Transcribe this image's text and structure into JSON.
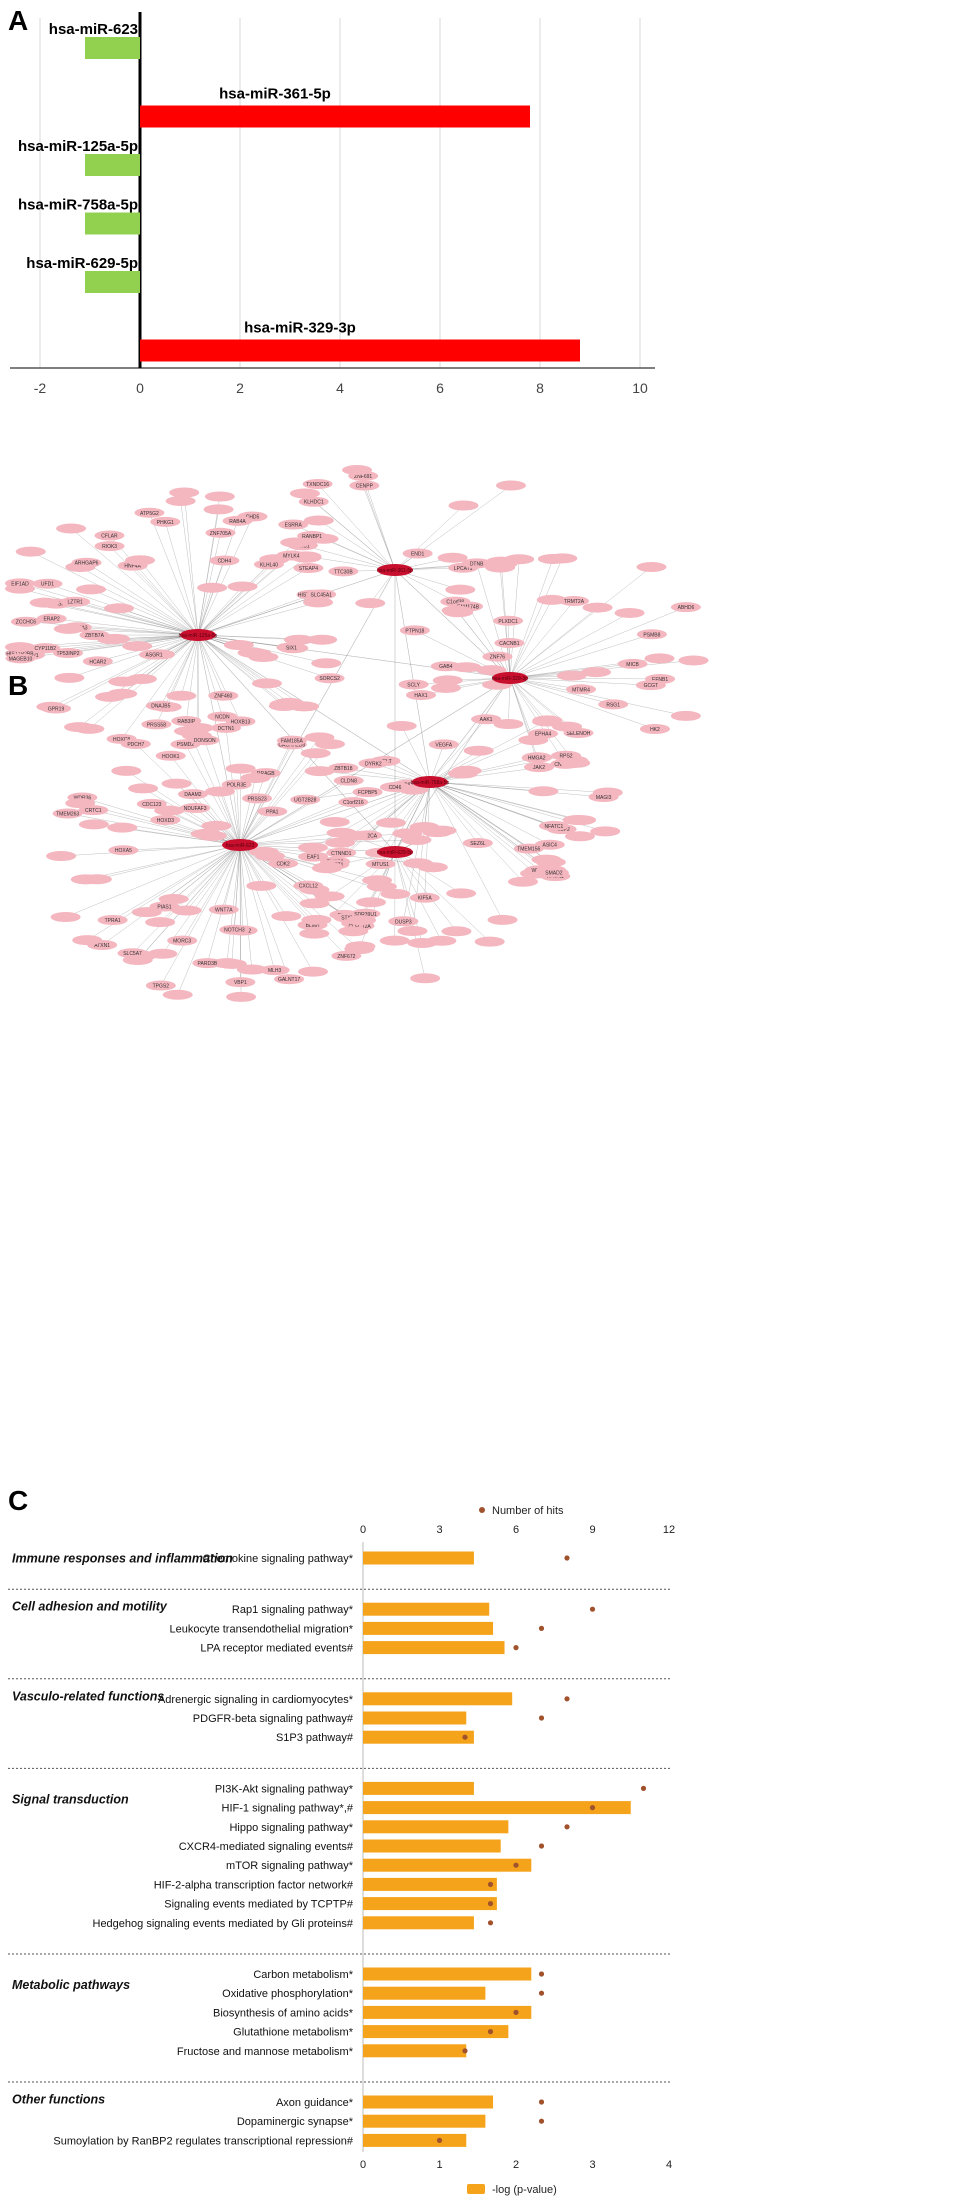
{
  "chart_data": [
    {
      "type": "bar",
      "panel_label": "A",
      "orientation": "horizontal",
      "categories": [
        "hsa-miR-623",
        "hsa-miR-361-5p",
        "hsa-miR-125a-5p",
        "hsa-miR-758a-5p",
        "hsa-miR-629-5p",
        "hsa-miR-329-3p"
      ],
      "values": [
        -1.1,
        7.8,
        -1.1,
        -1.1,
        -1.1,
        8.8
      ],
      "colors": {
        "positive": "#ff0000",
        "negative": "#92d050"
      },
      "xlim": [
        -2.5,
        10.5
      ],
      "xticks": [
        "-2",
        "0",
        "2",
        "4",
        "6",
        "8",
        "10"
      ],
      "grid": true
    },
    {
      "type": "network",
      "panel_label": "B",
      "hub_labels": [
        "hsa-miR-361-5p",
        "hsa-miR-329-3p",
        "hsa-miR-125a-5p",
        "hsa-miR-758a-5p",
        "hsa-miR-623",
        "hsa-miR-629-5p"
      ],
      "node_labels": [
        "ESRRA",
        "PRC1",
        "TXNDC16",
        "CENPP",
        "ZNF691",
        "END1",
        "LPCAT1",
        "RBAK",
        "C1orf38",
        "KLHDC1",
        "TTC30B",
        "CNTLN14",
        "FAM174B",
        "RSG1",
        "EFNB1",
        "PSMB8",
        "HAX1",
        "PFKM",
        "SEMA4B",
        "ABHD6",
        "CACNB1",
        "SELENOH",
        "JAK2",
        "KCNH3",
        "SCLY",
        "HK2",
        "MICB",
        "DTNB",
        "MTMR4",
        "PTPN18",
        "ZNF76",
        "GCGT",
        "TRMT2A",
        "PLXDC1",
        "GAB4",
        "MASP1",
        "ATP5G2",
        "SORCS2",
        "ZNF460",
        "TP53INP2",
        "SDCBP",
        "CFLAR",
        "HIST1H2BB",
        "ZCCHC6",
        "EIF1AD",
        "RAB12",
        "RIOK3",
        "ERAP2",
        "RTKN",
        "HNF4A",
        "NCDN",
        "HIST1H2BH",
        "HOXB13",
        "HOXC8",
        "CDH4",
        "MYLK4",
        "SLC12A3",
        "ASGR1",
        "CYP11B2",
        "HCAR2",
        "BCAN",
        "LZTR1",
        "PHKG1",
        "RANBP1",
        "ZNF705A",
        "IRF2BP2",
        "DNAJB5",
        "STEAP4",
        "PRSS58",
        "SLC45A1",
        "UFD1",
        "CHD5",
        "ARHGAP6",
        "GPR19",
        "MAGEB10",
        "KLHL40",
        "SIX1",
        "RAB4A",
        "ZBTB7A",
        "RAB3IP",
        "ZBTB18",
        "LY6G6F",
        "BID",
        "TMTC2",
        "SEZ6L",
        "EPHA4",
        "PCBP2",
        "HELT",
        "CD46",
        "NFATC1",
        "ASIC4",
        "UGT2B28",
        "TMEM156",
        "WWC3",
        "DUSP3",
        "RPS2",
        "PPP2CA",
        "DYRK2",
        "ARCN1",
        "AAK1",
        "SMAD2",
        "MTUS1",
        "VEGFA",
        "CTNND1",
        "TWIST1",
        "MAGI3",
        "KIF5A",
        "HMGA2",
        "ATXN1",
        "CRTC1",
        "PELO",
        "HOXA5",
        "CDC123",
        "VBP1",
        "PPA1",
        "DCTN1",
        "MACF1",
        "CDK2",
        "HOXD3",
        "STAT6",
        "PSMD2",
        "CLDN8",
        "BLMH",
        "WDR36",
        "CNOT2",
        "RRAGB",
        "TPGS2",
        "MORC3",
        "POLR3E",
        "TMEM263",
        "CACNA2D3",
        "HOOK1",
        "EAF1",
        "PIAS1",
        "NOTCH3",
        "PARD3B",
        "DAAM2",
        "LMX1A",
        "SDR39U1",
        "TPRA1",
        "C1orf216",
        "CXCL12",
        "GALNT17",
        "SLC5A7",
        "FCPBP5",
        "DONSON",
        "CLEC12A",
        "WNT7A",
        "PDCH7",
        "PRSS23",
        "FAM185A",
        "NDUFAF3",
        "ZNF672",
        "MLH3"
      ],
      "edge_colors": {
        "hub": "#c8102e",
        "node": "#f4b6bf",
        "edge": "#8a8a8a"
      }
    },
    {
      "type": "bar",
      "panel_label": "C",
      "orientation": "horizontal",
      "series": [
        {
          "name": "-log (p-value)",
          "values": [
            1.45,
            1.65,
            1.7,
            1.85,
            1.95,
            1.35,
            1.45,
            1.45,
            3.5,
            1.9,
            1.8,
            2.2,
            1.75,
            1.75,
            1.45,
            2.2,
            1.6,
            2.2,
            1.9,
            1.35,
            1.7,
            1.6,
            1.35
          ]
        },
        {
          "name": "Number of hits",
          "values": [
            8,
            9,
            7,
            6,
            8,
            7,
            4,
            11,
            9,
            8,
            7,
            6,
            5,
            5,
            5,
            7,
            7,
            6,
            5,
            4,
            7,
            7,
            3
          ]
        }
      ],
      "categories": [
        "Chemokine signaling pathway*",
        "Rap1 signaling pathway*",
        "Leukocyte transendothelial migration*",
        "LPA receptor mediated events#",
        "Adrenergic signaling in cardiomyocytes*",
        "PDGFR-beta signaling pathway#",
        "S1P3 pathway#",
        "PI3K-Akt signaling pathway*",
        "HIF-1 signaling pathway*,#",
        "Hippo signaling pathway*",
        "CXCR4-mediated signaling events#",
        "mTOR signaling pathway*",
        "HIF-2-alpha transcription factor network#",
        "Signaling events mediated by TCPTP#",
        "Hedgehog signaling events mediated by Gli proteins#",
        "Carbon metabolism*",
        "Oxidative phosphorylation*",
        "Biosynthesis of amino acids*",
        "Glutathione metabolism*",
        "Fructose and mannose metabolism*",
        "Axon guidance*",
        "Dopaminergic synapse*",
        "Sumoylation by RanBP2 regulates transcriptional repression#"
      ],
      "groups": [
        {
          "name": "Immune responses and inflammation",
          "count": 1
        },
        {
          "name": "Cell adhesion and motility",
          "count": 3
        },
        {
          "name": "Vasculo-related functions",
          "count": 3
        },
        {
          "name": "Signal transduction",
          "count": 8
        },
        {
          "name": "Metabolic pathways",
          "count": 5
        },
        {
          "name": "Other functions",
          "count": 3
        }
      ],
      "xlim": [
        0,
        4
      ],
      "xticks": [
        "0",
        "1",
        "2",
        "3",
        "4"
      ],
      "x2lim": [
        0,
        12
      ],
      "x2ticks": [
        "0",
        "3",
        "6",
        "9",
        "12"
      ],
      "colors": {
        "bar": "#f5a31a",
        "dot": "#a0522d"
      }
    }
  ]
}
